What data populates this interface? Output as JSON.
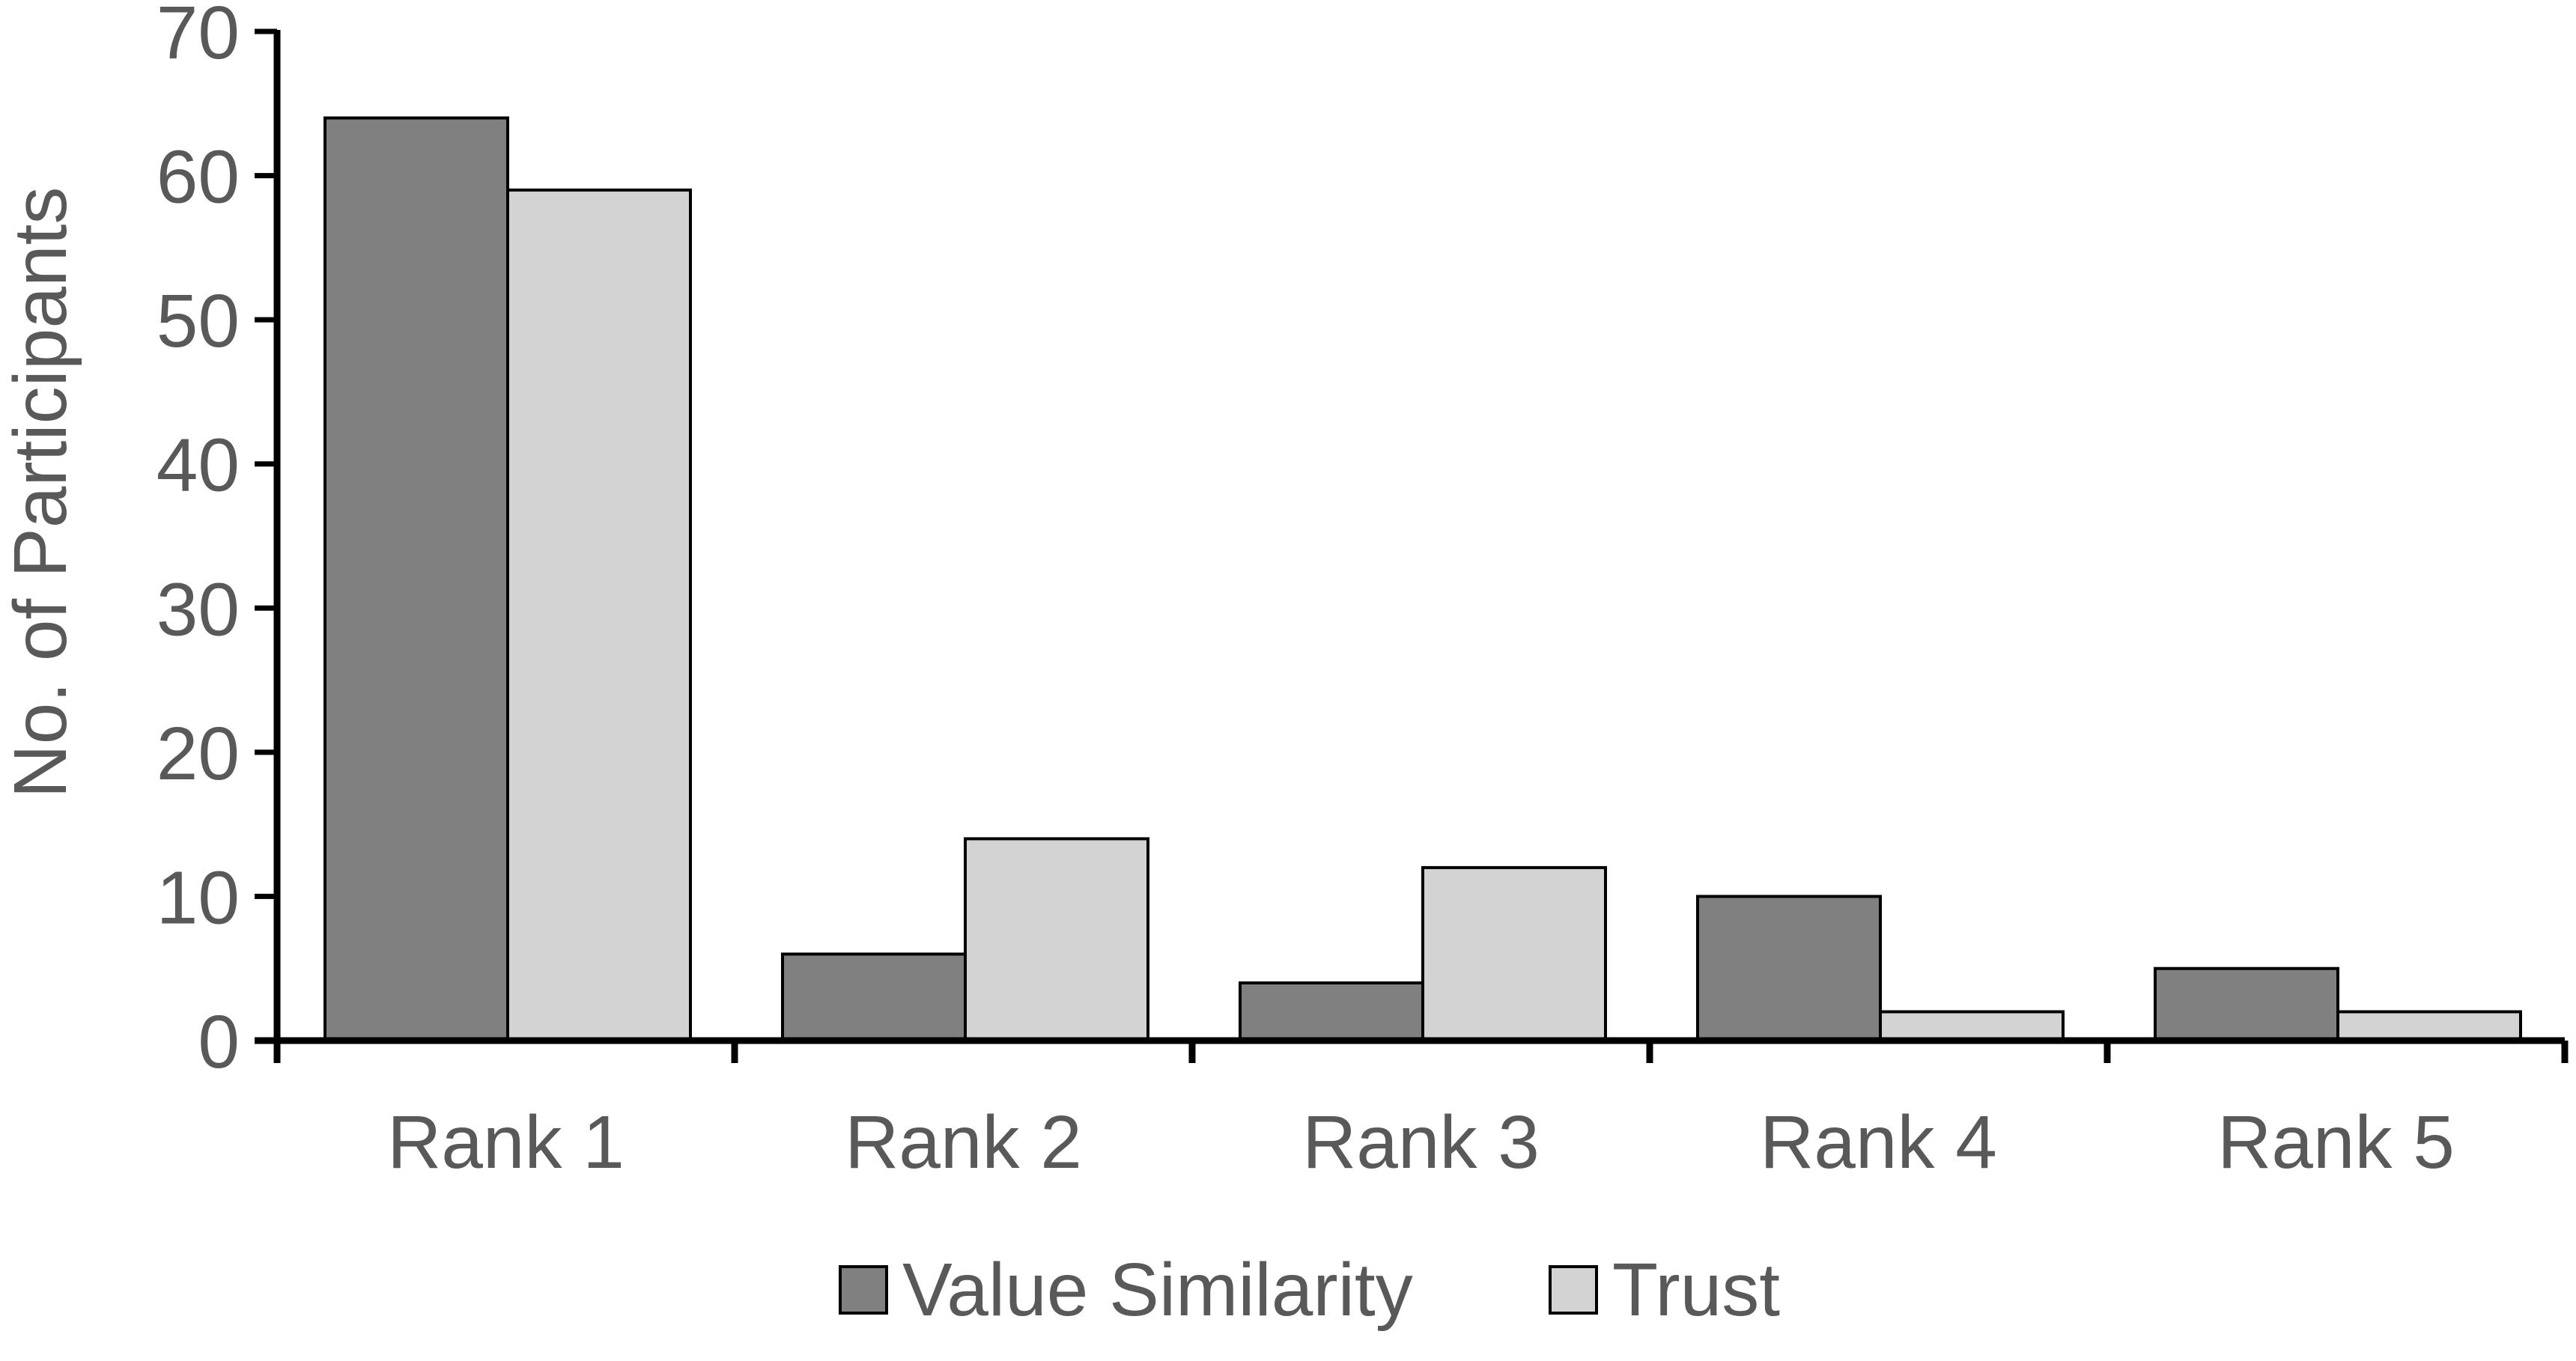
{
  "chart_data": {
    "type": "bar",
    "title": "",
    "xlabel": "",
    "ylabel": "No. of Participants",
    "categories": [
      "Rank 1",
      "Rank 2",
      "Rank 3",
      "Rank 4",
      "Rank 5"
    ],
    "series": [
      {
        "name": "Value Similarity",
        "values": [
          64,
          6,
          4,
          10,
          5
        ],
        "color": "#808080"
      },
      {
        "name": "Trust",
        "values": [
          59,
          14,
          12,
          2,
          2
        ],
        "color": "#d3d3d3"
      }
    ],
    "ylim": [
      0,
      70
    ],
    "yticks": [
      0,
      10,
      20,
      30,
      40,
      50,
      60,
      70
    ],
    "grid": false,
    "legend_position": "bottom",
    "bar_outline_color": "#000000"
  }
}
